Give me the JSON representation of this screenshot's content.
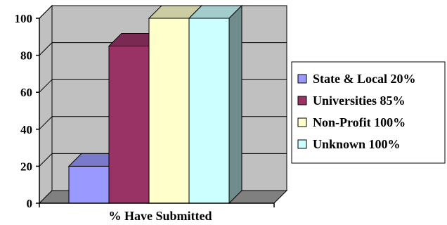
{
  "chart_data": {
    "type": "bar",
    "categories": [
      "% Have Submitted"
    ],
    "series": [
      {
        "name": "State & Local 20%",
        "values": [
          20
        ],
        "color": "#9999ff"
      },
      {
        "name": "Universities 85%",
        "values": [
          85
        ],
        "color": "#993366"
      },
      {
        "name": "Non-Profit 100%",
        "values": [
          100
        ],
        "color": "#ffffcc"
      },
      {
        "name": "Unknown 100%",
        "values": [
          100
        ],
        "color": "#ccffff"
      }
    ],
    "title": "",
    "xlabel": "",
    "ylabel": "",
    "ylim": [
      0,
      100
    ],
    "yticks": [
      "0",
      "20",
      "40",
      "60",
      "80",
      "100"
    ],
    "grid": true,
    "legend": "right",
    "wall_color": "#c0c0c0",
    "floor_color": "#808080"
  }
}
